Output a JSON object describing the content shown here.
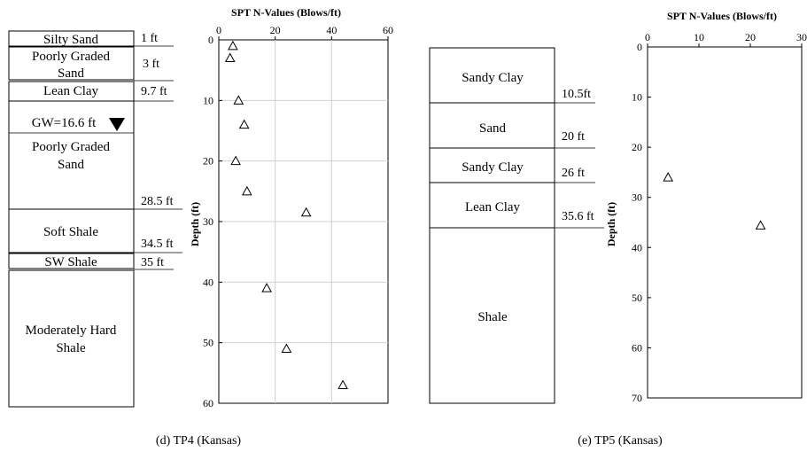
{
  "panels": [
    {
      "caption": "(d) TP4 (Kansas)",
      "gw_label": "GW=16.6 ft",
      "layers": [
        {
          "name": "Silty Sand",
          "top": 0,
          "bottom": 1,
          "depth_label": "1 ft"
        },
        {
          "name": "Poorly Graded Sand",
          "top": 1,
          "bottom": 3,
          "depth_label": "3 ft"
        },
        {
          "name": "Lean Clay",
          "top": 3,
          "bottom": 9.7,
          "depth_label": "9.7 ft"
        },
        {
          "name": "Poorly Graded Sand",
          "top": 9.7,
          "bottom": 28.5,
          "depth_label": "28.5 ft"
        },
        {
          "name": "Soft Shale",
          "top": 28.5,
          "bottom": 34.5,
          "depth_label": "34.5 ft"
        },
        {
          "name": "SW Shale",
          "top": 34.5,
          "bottom": 35,
          "depth_label": "35 ft"
        },
        {
          "name": "Moderately Hard Shale",
          "top": 35,
          "bottom": 60,
          "depth_label": ""
        }
      ]
    },
    {
      "caption": "(e) TP5 (Kansas)",
      "gw_label": "",
      "layers": [
        {
          "name": "Sandy Clay",
          "top": 0,
          "bottom": 10.5,
          "depth_label": "10.5ft"
        },
        {
          "name": "Sand",
          "top": 10.5,
          "bottom": 20,
          "depth_label": "20 ft"
        },
        {
          "name": "Sandy Clay",
          "top": 20,
          "bottom": 26,
          "depth_label": "26 ft"
        },
        {
          "name": "Lean Clay",
          "top": 26,
          "bottom": 35.6,
          "depth_label": "35.6 ft"
        },
        {
          "name": "Shale",
          "top": 35.6,
          "bottom": 70,
          "depth_label": ""
        }
      ]
    }
  ],
  "chart_data": [
    {
      "type": "scatter",
      "title": "SPT N-Values (Blows/ft)",
      "xlabel": "SPT N-Values (Blows/ft)",
      "ylabel": "Depth (ft)",
      "xlim": [
        0,
        60
      ],
      "ylim": [
        60,
        0
      ],
      "xticks": [
        0,
        20,
        40,
        60
      ],
      "yticks": [
        0,
        10,
        20,
        30,
        40,
        50,
        60
      ],
      "grid": true,
      "marker": "triangle-open",
      "points": [
        {
          "x": 5,
          "y": 1
        },
        {
          "x": 4,
          "y": 3
        },
        {
          "x": 7,
          "y": 10
        },
        {
          "x": 9,
          "y": 14
        },
        {
          "x": 6,
          "y": 20
        },
        {
          "x": 10,
          "y": 25
        },
        {
          "x": 31,
          "y": 28.5
        },
        {
          "x": 17,
          "y": 41
        },
        {
          "x": 24,
          "y": 51
        },
        {
          "x": 44,
          "y": 57
        }
      ]
    },
    {
      "type": "scatter",
      "title": "SPT N-Values (Blows/ft)",
      "xlabel": "SPT N-Values (Blows/ft)",
      "ylabel": "Depth (ft)",
      "xlim": [
        0,
        30
      ],
      "ylim": [
        70,
        0
      ],
      "xticks": [
        0,
        10,
        20,
        30
      ],
      "yticks": [
        0,
        10,
        20,
        30,
        40,
        50,
        60,
        70
      ],
      "grid": false,
      "marker": "triangle-open",
      "points": [
        {
          "x": 4,
          "y": 26
        },
        {
          "x": 22,
          "y": 35.6
        }
      ]
    }
  ]
}
